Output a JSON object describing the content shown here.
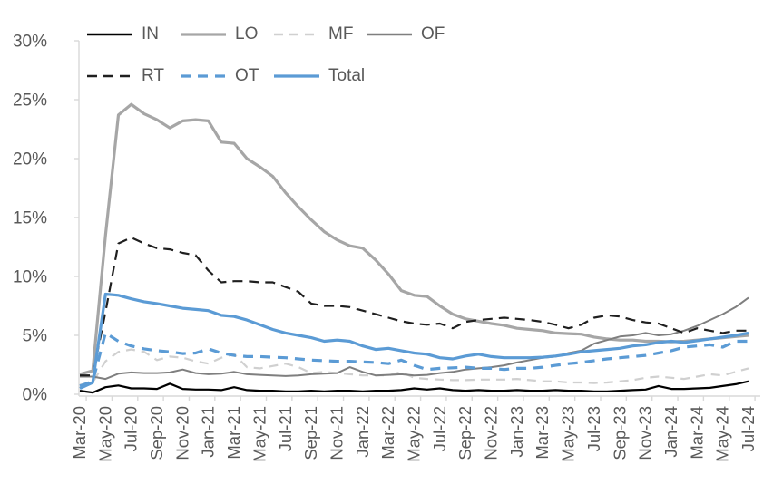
{
  "chart_data": {
    "type": "line",
    "title": "",
    "xlabel": "",
    "ylabel": "",
    "ylim": [
      0,
      30
    ],
    "grid": "off",
    "legend_position": "top",
    "axis_color": "#d9d9d9",
    "label_color": "#595959",
    "y_ticks": [
      "0%",
      "5%",
      "10%",
      "15%",
      "20%",
      "25%",
      "30%"
    ],
    "x_tick_labels": [
      "Mar-20",
      "May-20",
      "Jul-20",
      "Sep-20",
      "Nov-20",
      "Jan-21",
      "Mar-21",
      "May-21",
      "Jul-21",
      "Sep-21",
      "Nov-21",
      "Jan-22",
      "Mar-22",
      "May-22",
      "Jul-22",
      "Sep-22",
      "Nov-22",
      "Jan-23",
      "Mar-23",
      "May-23",
      "Jul-23",
      "Sep-23",
      "Nov-23",
      "Jan-24",
      "Mar-24",
      "May-24",
      "Jul-24"
    ],
    "x_months": [
      "Mar-20",
      "Apr-20",
      "May-20",
      "Jun-20",
      "Jul-20",
      "Aug-20",
      "Sep-20",
      "Oct-20",
      "Nov-20",
      "Dec-20",
      "Jan-21",
      "Feb-21",
      "Mar-21",
      "Apr-21",
      "May-21",
      "Jun-21",
      "Jul-21",
      "Aug-21",
      "Sep-21",
      "Oct-21",
      "Nov-21",
      "Dec-21",
      "Jan-22",
      "Feb-22",
      "Mar-22",
      "Apr-22",
      "May-22",
      "Jun-22",
      "Jul-22",
      "Aug-22",
      "Sep-22",
      "Oct-22",
      "Nov-22",
      "Dec-22",
      "Jan-23",
      "Feb-23",
      "Mar-23",
      "Apr-23",
      "May-23",
      "Jun-23",
      "Jul-23",
      "Aug-23",
      "Sep-23",
      "Oct-23",
      "Nov-23",
      "Dec-23",
      "Jan-24",
      "Feb-24",
      "Mar-24",
      "Apr-24",
      "May-24",
      "Jun-24",
      "Jul-24"
    ],
    "series": [
      {
        "name": "IN",
        "color": "#000000",
        "style": "solid",
        "dash": "",
        "width": 2.2,
        "values": [
          0.3,
          0.15,
          0.6,
          0.75,
          0.5,
          0.5,
          0.45,
          0.9,
          0.45,
          0.4,
          0.4,
          0.35,
          0.6,
          0.35,
          0.3,
          0.3,
          0.25,
          0.25,
          0.3,
          0.25,
          0.3,
          0.3,
          0.25,
          0.3,
          0.3,
          0.35,
          0.5,
          0.4,
          0.5,
          0.35,
          0.3,
          0.35,
          0.3,
          0.3,
          0.35,
          0.3,
          0.3,
          0.35,
          0.3,
          0.3,
          0.25,
          0.25,
          0.3,
          0.35,
          0.4,
          0.7,
          0.45,
          0.45,
          0.5,
          0.55,
          0.7,
          0.85,
          1.1
        ]
      },
      {
        "name": "LO",
        "color": "#a6a6a6",
        "style": "solid",
        "dash": "",
        "width": 3.2,
        "values": [
          1.7,
          2.0,
          13.5,
          23.7,
          24.6,
          23.8,
          23.3,
          22.6,
          23.2,
          23.3,
          23.2,
          21.4,
          21.3,
          20.0,
          19.3,
          18.5,
          17.1,
          15.9,
          14.8,
          13.8,
          13.1,
          12.6,
          12.4,
          11.4,
          10.2,
          8.8,
          8.4,
          8.3,
          7.5,
          6.8,
          6.4,
          6.2,
          6.0,
          5.85,
          5.6,
          5.5,
          5.4,
          5.2,
          5.15,
          5.1,
          4.85,
          4.7,
          4.6,
          4.6,
          4.5,
          4.5,
          4.45,
          4.5,
          4.6,
          4.7,
          4.8,
          4.9,
          5.0
        ]
      },
      {
        "name": "MF",
        "color": "#d0d0d0",
        "style": "dashed",
        "dash": "10 7",
        "width": 2.2,
        "values": [
          0.8,
          1.0,
          2.8,
          3.6,
          3.8,
          3.6,
          2.9,
          3.2,
          3.1,
          2.8,
          2.6,
          3.1,
          3.4,
          2.3,
          2.2,
          2.4,
          2.6,
          2.3,
          1.8,
          1.9,
          1.8,
          1.7,
          1.6,
          1.6,
          1.6,
          1.9,
          1.4,
          1.3,
          1.25,
          1.2,
          1.2,
          1.25,
          1.25,
          1.25,
          1.3,
          1.2,
          1.1,
          1.1,
          1.0,
          1.0,
          0.95,
          1.0,
          1.1,
          1.2,
          1.4,
          1.5,
          1.4,
          1.3,
          1.5,
          1.7,
          1.6,
          1.9,
          2.2
        ]
      },
      {
        "name": "OF",
        "color": "#7f7f7f",
        "style": "solid",
        "dash": "",
        "width": 2.0,
        "values": [
          1.5,
          1.5,
          1.3,
          1.75,
          1.85,
          1.8,
          1.8,
          1.85,
          2.1,
          1.8,
          1.7,
          1.75,
          1.9,
          1.7,
          1.65,
          1.6,
          1.55,
          1.6,
          1.7,
          1.75,
          1.8,
          2.3,
          1.9,
          1.6,
          1.65,
          1.7,
          1.6,
          1.65,
          1.8,
          1.9,
          2.1,
          2.2,
          2.3,
          2.45,
          2.7,
          2.9,
          3.1,
          3.2,
          3.5,
          3.7,
          4.3,
          4.6,
          4.9,
          5.0,
          5.2,
          5.0,
          5.1,
          5.4,
          5.8,
          6.3,
          6.8,
          7.4,
          8.2
        ]
      },
      {
        "name": "RT",
        "color": "#1f1f1f",
        "style": "dashed",
        "dash": "11 7",
        "width": 2.2,
        "values": [
          1.6,
          1.6,
          7.0,
          12.8,
          13.3,
          12.8,
          12.4,
          12.3,
          12.0,
          11.8,
          10.5,
          9.5,
          9.6,
          9.6,
          9.5,
          9.5,
          9.1,
          8.7,
          7.7,
          7.5,
          7.5,
          7.4,
          7.1,
          6.8,
          6.5,
          6.2,
          6.0,
          5.9,
          6.0,
          5.6,
          6.15,
          6.3,
          6.4,
          6.5,
          6.4,
          6.3,
          6.15,
          5.9,
          5.6,
          5.9,
          6.5,
          6.7,
          6.6,
          6.3,
          6.1,
          6.0,
          5.6,
          5.2,
          5.6,
          5.4,
          5.2,
          5.4,
          5.4
        ]
      },
      {
        "name": "OT",
        "color": "#5b9bd5",
        "style": "dashed",
        "dash": "11 8",
        "width": 3.2,
        "values": [
          0.7,
          1.1,
          5.2,
          4.5,
          4.1,
          3.85,
          3.7,
          3.6,
          3.45,
          3.5,
          3.85,
          3.5,
          3.3,
          3.2,
          3.2,
          3.15,
          3.1,
          3.0,
          2.9,
          2.85,
          2.8,
          2.8,
          2.75,
          2.7,
          2.6,
          2.9,
          2.45,
          2.1,
          2.2,
          2.25,
          2.3,
          2.2,
          2.2,
          2.1,
          2.2,
          2.2,
          2.3,
          2.45,
          2.6,
          2.7,
          2.85,
          3.0,
          3.1,
          3.2,
          3.3,
          3.5,
          3.7,
          4.0,
          4.1,
          4.2,
          4.0,
          4.5,
          4.5
        ]
      },
      {
        "name": "Total",
        "color": "#5b9bd5",
        "style": "solid",
        "dash": "",
        "width": 3.2,
        "values": [
          0.5,
          1.0,
          8.5,
          8.4,
          8.1,
          7.85,
          7.7,
          7.5,
          7.3,
          7.2,
          7.1,
          6.7,
          6.6,
          6.3,
          5.9,
          5.5,
          5.2,
          5.0,
          4.8,
          4.5,
          4.6,
          4.5,
          4.1,
          3.8,
          3.9,
          3.7,
          3.5,
          3.4,
          3.1,
          3.0,
          3.25,
          3.4,
          3.2,
          3.1,
          3.1,
          3.1,
          3.15,
          3.25,
          3.4,
          3.6,
          3.7,
          3.8,
          3.9,
          4.1,
          4.2,
          4.4,
          4.5,
          4.4,
          4.55,
          4.7,
          4.85,
          5.0,
          5.2
        ]
      }
    ]
  }
}
